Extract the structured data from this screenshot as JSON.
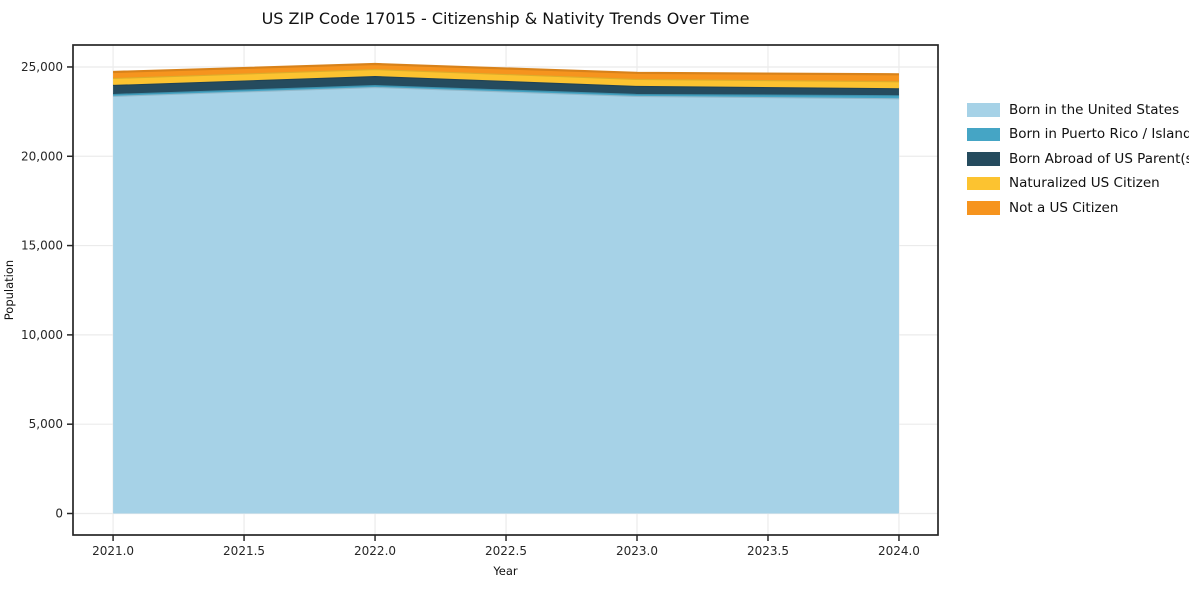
{
  "title": "US ZIP Code 17015 - Citizenship & Nativity Trends Over Time",
  "chart_data": {
    "type": "area",
    "stacked": true,
    "title": "US ZIP Code 17015 - Citizenship & Nativity Trends Over Time",
    "xlabel": "Year",
    "ylabel": "Population",
    "legend_position": "right",
    "grid": true,
    "x": [
      2021,
      2022,
      2023,
      2024
    ],
    "series": [
      {
        "name": "Born in the United States",
        "color": "#a6d2e7",
        "values": [
          23380,
          23880,
          23380,
          23250
        ]
      },
      {
        "name": "Born in Puerto Rico / Islands",
        "color": "#45a5c5",
        "values": [
          110,
          110,
          110,
          170
        ]
      },
      {
        "name": "Born Abroad of US Parent(s)",
        "color": "#254b5e",
        "values": [
          505,
          505,
          450,
          390
        ]
      },
      {
        "name": "Naturalized US Citizen",
        "color": "#fcc330",
        "values": [
          390,
          390,
          390,
          390
        ]
      },
      {
        "name": "Not a US Citizen",
        "color": "#f6941e",
        "values": [
          335,
          280,
          340,
          390
        ]
      }
    ],
    "x_ticks": [
      {
        "v": 2021.0,
        "label": "2021.0"
      },
      {
        "v": 2021.5,
        "label": "2021.5"
      },
      {
        "v": 2022.0,
        "label": "2022.0"
      },
      {
        "v": 2022.5,
        "label": "2022.5"
      },
      {
        "v": 2023.0,
        "label": "2023.0"
      },
      {
        "v": 2023.5,
        "label": "2023.5"
      },
      {
        "v": 2024.0,
        "label": "2024.0"
      }
    ],
    "y_ticks": [
      {
        "v": 0,
        "label": "0"
      },
      {
        "v": 5000,
        "label": "5,000"
      },
      {
        "v": 10000,
        "label": "10,000"
      },
      {
        "v": 15000,
        "label": "15,000"
      },
      {
        "v": 20000,
        "label": "20,000"
      },
      {
        "v": 25000,
        "label": "25,000"
      }
    ],
    "xlim": [
      2020.847,
      2024.149
    ],
    "ylim": [
      -1204,
      26230
    ],
    "colors": {
      "grid": "#ebebeb",
      "spine": "#262626",
      "tick_label": "#262626",
      "background": "#ffffff"
    }
  }
}
